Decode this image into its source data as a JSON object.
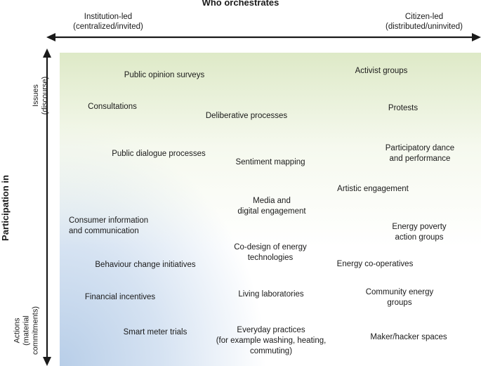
{
  "title": "Who orchestrates",
  "x_axis": {
    "left_line1": "Institution-led",
    "left_line2": "(centralized/invited)",
    "right_line1": "Citizen-led",
    "right_line2": "(distributed/uninvited)"
  },
  "y_axis": {
    "title": "Participation in",
    "top_line1": "Issues",
    "top_line2": "(discourse)",
    "bottom_line1": "Actions",
    "bottom_line2": "(material",
    "bottom_line3": "commitments)"
  },
  "labels": {
    "public_opinion_surveys": "Public opinion surveys",
    "activist_groups": "Activist groups",
    "consultations": "Consultations",
    "deliberative_processes": "Deliberative processes",
    "protests": "Protests",
    "public_dialogue_processes": "Public dialogue processes",
    "sentiment_mapping": "Sentiment mapping",
    "participatory_dance_1": "Participatory dance",
    "participatory_dance_2": "and performance",
    "artistic_engagement": "Artistic engagement",
    "media_1": "Media and",
    "media_2": "digital engagement",
    "consumer_info_1": "Consumer information",
    "consumer_info_2": "and communication",
    "energy_poverty_1": "Energy poverty",
    "energy_poverty_2": "action groups",
    "codesign_1": "Co-design of energy",
    "codesign_2": "technologies",
    "behaviour_change": "Behaviour change initiatives",
    "energy_coops": "Energy co-operatives",
    "financial_incentives": "Financial incentives",
    "living_labs": "Living laboratories",
    "community_energy_1": "Community energy",
    "community_energy_2": "groups",
    "smart_meter": "Smart meter trials",
    "everyday_1": "Everyday practices",
    "everyday_2": "(for example washing, heating,",
    "everyday_3": "commuting)",
    "maker_spaces": "Maker/hacker spaces"
  }
}
